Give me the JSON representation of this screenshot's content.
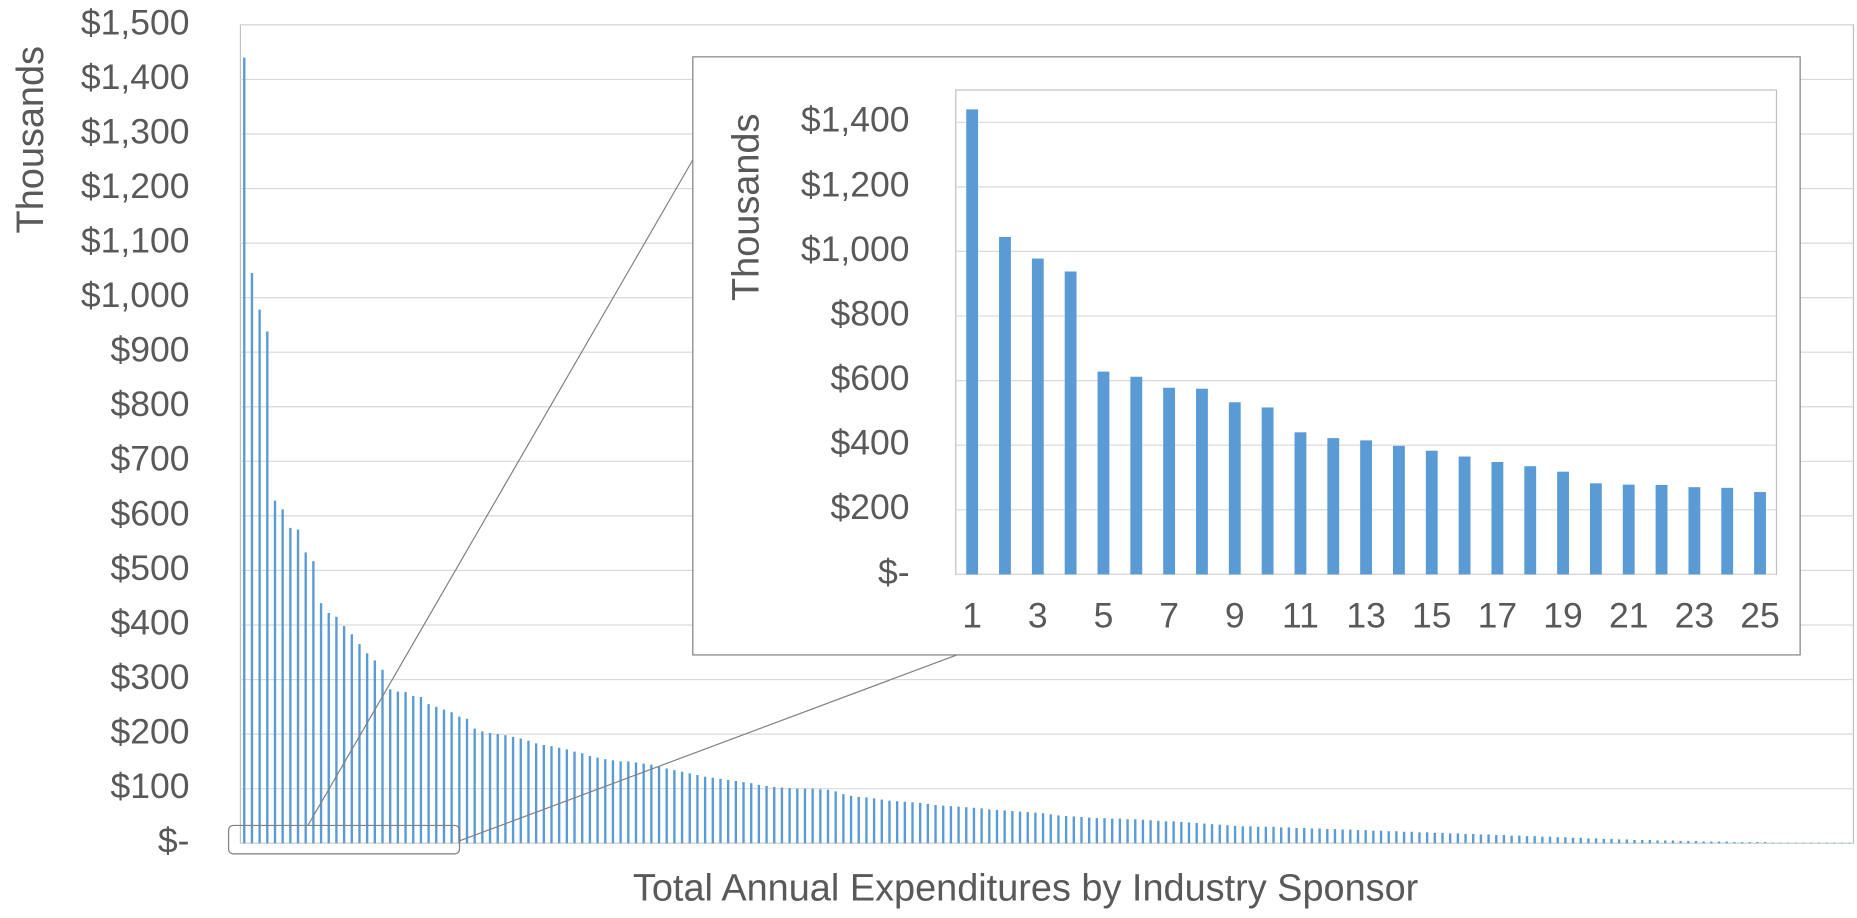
{
  "chart_data": [
    {
      "type": "bar",
      "xlabel": "Total Annual Expenditures by Industry Sponsor",
      "ylabel": "Thousands",
      "color": "#5b9bd5",
      "grid": true,
      "ylim": [
        0,
        1500
      ],
      "yticks": [
        {
          "value": 0,
          "label": "$-"
        },
        {
          "value": 100,
          "label": "$100"
        },
        {
          "value": 200,
          "label": "$200"
        },
        {
          "value": 300,
          "label": "$300"
        },
        {
          "value": 400,
          "label": "$400"
        },
        {
          "value": 500,
          "label": "$500"
        },
        {
          "value": 600,
          "label": "$600"
        },
        {
          "value": 700,
          "label": "$700"
        },
        {
          "value": 800,
          "label": "$800"
        },
        {
          "value": 900,
          "label": "$900"
        },
        {
          "value": 1000,
          "label": "$1,000"
        },
        {
          "value": 1100,
          "label": "$1,100"
        },
        {
          "value": 1200,
          "label": "$1,200"
        },
        {
          "value": 1300,
          "label": "$1,300"
        },
        {
          "value": 1400,
          "label": "$1,400"
        },
        {
          "value": 1500,
          "label": "$1,500"
        }
      ],
      "values": [
        1440,
        1045,
        978,
        938,
        628,
        612,
        578,
        575,
        533,
        517,
        440,
        422,
        415,
        398,
        383,
        365,
        348,
        335,
        318,
        282,
        278,
        277,
        270,
        268,
        255,
        250,
        245,
        240,
        232,
        228,
        210,
        205,
        202,
        200,
        198,
        195,
        192,
        188,
        183,
        180,
        178,
        175,
        172,
        168,
        165,
        160,
        157,
        154,
        152,
        150,
        150,
        148,
        146,
        144,
        140,
        137,
        134,
        131,
        128,
        125,
        122,
        120,
        118,
        116,
        114,
        112,
        110,
        107,
        105,
        103,
        102,
        101,
        100,
        100,
        100,
        99,
        98,
        95,
        90,
        87,
        85,
        84,
        82,
        80,
        78,
        77,
        76,
        75,
        74,
        72,
        70,
        69,
        68,
        67,
        66,
        65,
        64,
        62,
        61,
        60,
        59,
        58,
        57,
        56,
        55,
        53,
        51,
        50,
        49,
        48,
        47,
        46,
        46,
        45,
        45,
        44,
        44,
        43,
        42,
        41,
        40,
        40,
        39,
        38,
        37,
        36,
        35,
        34,
        33,
        32,
        31,
        31,
        30,
        30,
        30,
        29,
        29,
        28,
        28,
        27,
        27,
        26,
        26,
        25,
        25,
        24,
        24,
        23,
        23,
        22,
        22,
        21,
        21,
        20,
        20,
        19,
        19,
        18,
        18,
        17,
        17,
        16,
        16,
        15,
        15,
        14,
        14,
        13,
        13,
        12,
        12,
        11,
        11,
        10,
        10,
        9,
        9,
        8,
        8,
        7,
        7,
        6,
        6,
        6,
        5,
        5,
        5,
        4,
        4,
        4,
        3,
        3,
        3,
        3,
        2,
        2,
        2,
        2,
        2,
        1,
        1,
        1,
        1,
        1,
        1,
        1,
        1,
        1,
        1,
        1
      ]
    },
    {
      "type": "bar",
      "ylabel": "Thousands",
      "color": "#5b9bd5",
      "grid": true,
      "x": [
        1,
        2,
        3,
        4,
        5,
        6,
        7,
        8,
        9,
        10,
        11,
        12,
        13,
        14,
        15,
        16,
        17,
        18,
        19,
        20,
        21,
        22,
        23,
        24,
        25
      ],
      "xlim": [
        0.5,
        25.5
      ],
      "xticks": [
        1,
        3,
        5,
        7,
        9,
        11,
        13,
        15,
        17,
        19,
        21,
        23,
        25
      ],
      "ylim": [
        0,
        1500
      ],
      "yticks": [
        {
          "value": 0,
          "label": "$-"
        },
        {
          "value": 200,
          "label": "$200"
        },
        {
          "value": 400,
          "label": "$400"
        },
        {
          "value": 600,
          "label": "$600"
        },
        {
          "value": 800,
          "label": "$800"
        },
        {
          "value": 1000,
          "label": "$1,000"
        },
        {
          "value": 1200,
          "label": "$1,200"
        },
        {
          "value": 1400,
          "label": "$1,400"
        }
      ],
      "values": [
        1440,
        1045,
        978,
        938,
        628,
        612,
        578,
        575,
        533,
        517,
        440,
        422,
        415,
        398,
        383,
        365,
        348,
        335,
        318,
        282,
        278,
        277,
        270,
        268,
        255
      ]
    }
  ]
}
